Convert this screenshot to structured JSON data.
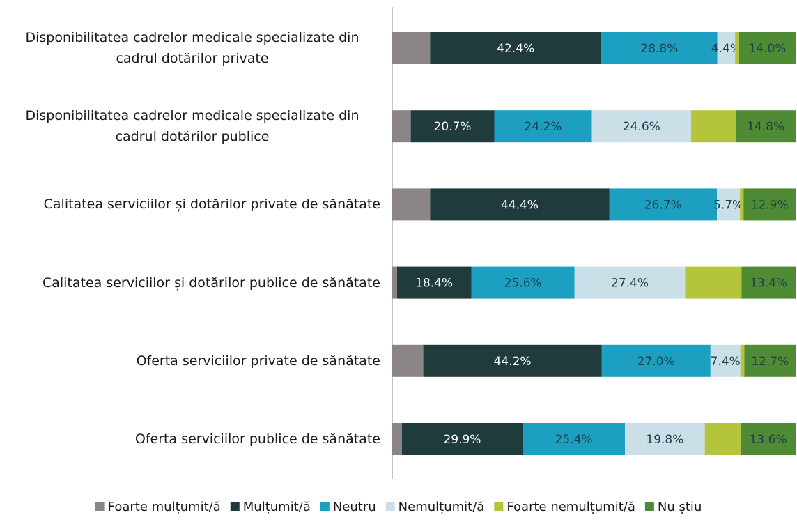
{
  "chart_data": {
    "type": "stacked_barh",
    "categories": [
      "Disponibilitatea cadrelor medicale specializate din cadrul dotărilor private",
      "Disponibilitatea cadrelor medicale specializate din cadrul dotărilor publice",
      "Calitatea serviciilor și dotărilor private de sănătate",
      "Calitatea serviciilor și dotărilor publice de sănătate",
      "Oferta serviciilor private de sănătate",
      "Oferta serviciilor publice de sănătate"
    ],
    "xlim": [
      0,
      100
    ],
    "legend": "bottom",
    "series": [
      {
        "name": "Foarte mulțumit/ă",
        "color": "#8c8587",
        "label_color": "#ffffff",
        "values": [
          9.4,
          4.6,
          9.4,
          1.2,
          7.7,
          2.4
        ],
        "value_labels": [
          null,
          null,
          null,
          null,
          null,
          null
        ]
      },
      {
        "name": "Mulțumit/ă",
        "color": "#1f3b3b",
        "label_color": "#ffffff",
        "values": [
          42.4,
          20.7,
          44.4,
          18.4,
          44.2,
          29.9
        ],
        "value_labels": [
          "42.4%",
          "20.7%",
          "44.4%",
          "18.4%",
          "44.2%",
          "29.9%"
        ]
      },
      {
        "name": "Neutru",
        "color": "#1c9fc1",
        "label_color": "#1d3f4a",
        "values": [
          28.8,
          24.2,
          26.7,
          25.6,
          27.0,
          25.4
        ],
        "value_labels": [
          "28.8%",
          "24.2%",
          "26.7%",
          "25.6%",
          "27.0%",
          "25.4%"
        ]
      },
      {
        "name": "Nemulțumit/ă",
        "color": "#cadfe8",
        "label_color": "#1d3f4a",
        "values": [
          4.4,
          24.6,
          5.7,
          27.4,
          7.4,
          19.8
        ],
        "value_labels": [
          "4.4%",
          "24.6%",
          "5.7%",
          "27.4%",
          "7.4%",
          "19.8%"
        ]
      },
      {
        "name": "Foarte nemulțumit/ă",
        "color": "#b5c53b",
        "label_color": "#1d3f4a",
        "values": [
          1.0,
          11.1,
          0.9,
          14.0,
          1.0,
          8.9
        ],
        "value_labels": [
          null,
          null,
          null,
          null,
          null,
          null
        ]
      },
      {
        "name": "Nu știu",
        "color": "#4f8b35",
        "label_color": "#1d3f4a",
        "values": [
          14.0,
          14.8,
          12.9,
          13.4,
          12.7,
          13.6
        ],
        "value_labels": [
          "14.0%",
          "14.8%",
          "12.9%",
          "13.4%",
          "12.7%",
          "13.6%"
        ]
      }
    ]
  }
}
